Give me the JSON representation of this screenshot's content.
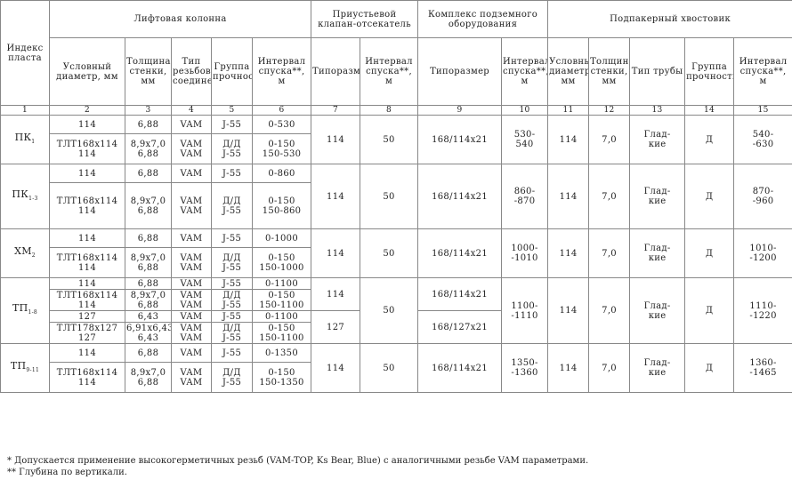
{
  "header": {
    "index": "Индекс пласта",
    "lift_column": "Лифтовая колонна",
    "valve": "Приустьевой клапан-отсекатель",
    "complex": "Комплекс подземного оборудования",
    "packer_tail": "Подпакерный хвостовик",
    "cols": {
      "diam": "Условный диаметр, мм",
      "wall": "Толщина стенки, мм",
      "thread": "Тип резьбового соединения*",
      "group": "Группа прочности",
      "interval": "Интервал спуска**, м",
      "valve_size": "Типоразмер",
      "valve_int": "Интервал спуска**, м",
      "cx_size": "Типоразмер",
      "cx_int": "Интервал спуска**, м",
      "t_diam": "Условный диаметр, мм",
      "t_wall": "Толщина стенки, мм",
      "t_pipe": "Тип трубы",
      "t_group": "Группа прочности",
      "t_int": "Интервал спуска**, м"
    },
    "nums": [
      "1",
      "2",
      "3",
      "4",
      "5",
      "6",
      "7",
      "8",
      "9",
      "10",
      "11",
      "12",
      "13",
      "14",
      "15"
    ]
  },
  "rows": [
    {
      "index": "ПК",
      "index_sub": "1",
      "a": {
        "diam": "114",
        "wall": "6,88",
        "thread": "VAM",
        "group": "J-55",
        "interval": "0-530"
      },
      "b": {
        "diam": "ТЛТ168х114\n114",
        "wall": "8,9х7,0\n6,88",
        "thread": "VAM\nVAM",
        "group": "Д/Д\nJ-55",
        "interval": "0-150\n150-530"
      },
      "valve_size": "114",
      "valve_int": "50",
      "cx_size": "168/114х21",
      "cx_int": "530-\n540",
      "t_diam": "114",
      "t_wall": "7,0",
      "t_pipe": "Глад-\nкие",
      "t_group": "Д",
      "t_int": "540-\n-630"
    },
    {
      "index": "ПК",
      "index_sub": "1-3",
      "a": {
        "diam": "114",
        "wall": "6,88",
        "thread": "VAM",
        "group": "J-55",
        "interval": "0-860"
      },
      "b": {
        "diam": "ТЛТ168х114\n114",
        "wall": "8,9х7,0\n6,88",
        "thread": "VAM\nVAM",
        "group": "Д/Д\nJ-55",
        "interval": "0-150\n150-860"
      },
      "valve_size": "114",
      "valve_int": "50",
      "cx_size": "168/114х21",
      "cx_int": "860-\n-870",
      "t_diam": "114",
      "t_wall": "7,0",
      "t_pipe": "Глад-\nкие",
      "t_group": "Д",
      "t_int": "870-\n-960"
    },
    {
      "index": "ХМ",
      "index_sub": "2",
      "a": {
        "diam": "114",
        "wall": "6,88",
        "thread": "VAM",
        "group": "J-55",
        "interval": "0-1000"
      },
      "b": {
        "diam": "ТЛТ168х114\n114",
        "wall": "8,9х7,0\n6,88",
        "thread": "VAM\nVAM",
        "group": "Д/Д\nJ-55",
        "interval": "0-150\n150-1000"
      },
      "valve_size": "114",
      "valve_int": "50",
      "cx_size": "168/114х21",
      "cx_int": "1000-\n-1010",
      "t_diam": "114",
      "t_wall": "7,0",
      "t_pipe": "Глад-\nкие",
      "t_group": "Д",
      "t_int": "1010-\n-1200"
    },
    {
      "index": "ТП",
      "index_sub": "1-8",
      "a": {
        "diam": "114",
        "wall": "6,88",
        "thread": "VAM",
        "group": "J-55",
        "interval": "0-1100"
      },
      "b": {
        "diam": "ТЛТ168х114\n114",
        "wall": "8,9х7,0\n6,88",
        "thread": "VAM\nVAM",
        "group": "Д/Д\nJ-55",
        "interval": "0-150\n150-1100"
      },
      "c": {
        "diam": "127",
        "wall": "6,43",
        "thread": "VAM",
        "group": "J-55",
        "interval": "0-1100"
      },
      "d": {
        "diam": "ТЛТ178х127\n127",
        "wall": "6,91х6,43\n6,43",
        "thread": "VAM\nVAM",
        "group": "Д/Д\nJ-55",
        "interval": "0-150\n150-1100"
      },
      "valve_size": "114",
      "valve_size2": "127",
      "valve_int": "50",
      "cx_size": "168/114х21",
      "cx_size2": "168/127х21",
      "cx_int": "1100-\n-1110",
      "t_diam": "114",
      "t_wall": "7,0",
      "t_pipe": "Глад-\nкие",
      "t_group": "Д",
      "t_int": "1110-\n-1220"
    },
    {
      "index": "ТП",
      "index_sub": "9-11",
      "a": {
        "diam": "114",
        "wall": "6,88",
        "thread": "VAM",
        "group": "J-55",
        "interval": "0-1350"
      },
      "b": {
        "diam": "ТЛТ168х114\n114",
        "wall": "8,9х7,0\n6,88",
        "thread": "VAM\nVAM",
        "group": "Д/Д\nJ-55",
        "interval": "0-150\n150-1350"
      },
      "valve_size": "114",
      "valve_int": "50",
      "cx_size": "168/114х21",
      "cx_int": "1350-\n-1360",
      "t_diam": "114",
      "t_wall": "7,0",
      "t_pipe": "Глад-\nкие",
      "t_group": "Д",
      "t_int": "1360-\n-1465"
    }
  ],
  "notes": [
    "*  Допускается применение высокогерметичных резьб (VAM-TOP, Ks Bear, Blue) с аналогичными резьбе VAM параметрами.",
    "** Глубина по вертикали."
  ]
}
